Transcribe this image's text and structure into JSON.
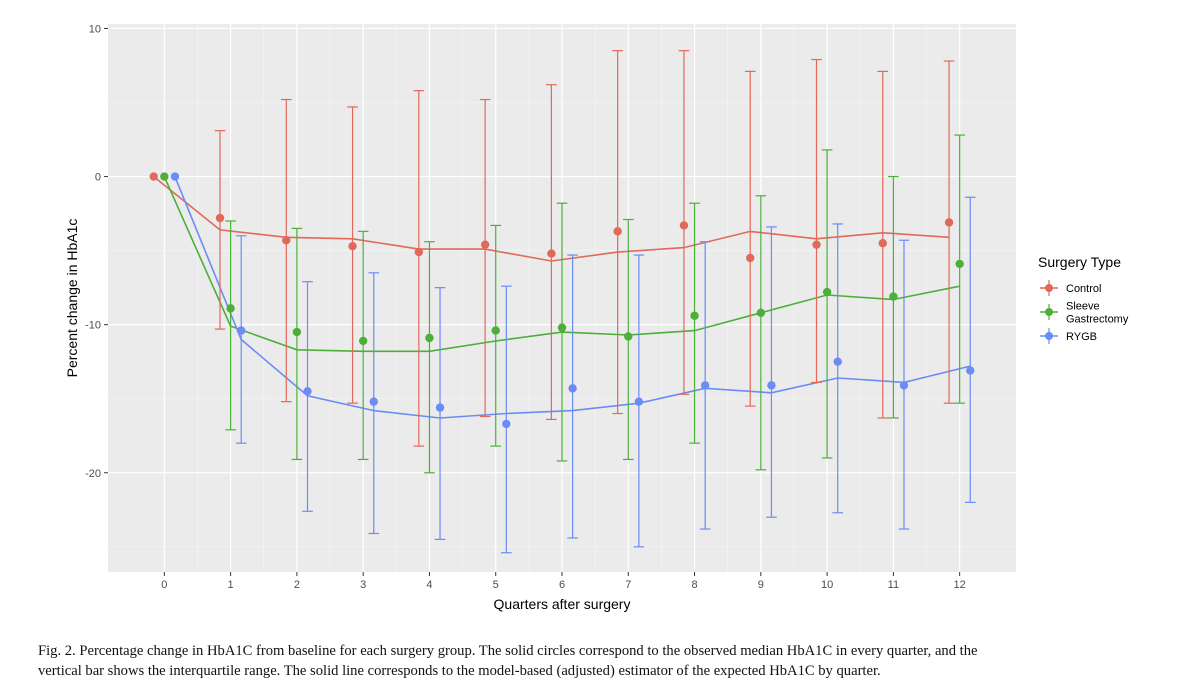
{
  "chart_data": {
    "type": "line",
    "ylabel": "Percent change in HbA1c",
    "xlabel": "Quarters after surgery",
    "x": [
      0,
      1,
      2,
      3,
      4,
      5,
      6,
      7,
      8,
      9,
      10,
      11,
      12
    ],
    "x_tick_labels": [
      "0",
      "1",
      "2",
      "3",
      "4",
      "5",
      "6",
      "7",
      "8",
      "9",
      "10",
      "11",
      "12"
    ],
    "y_ticks": [
      10,
      0,
      -10,
      -20
    ],
    "y_tick_labels": [
      "10",
      "0",
      "-10",
      "-20"
    ],
    "xlim": [
      -0.85,
      12.85
    ],
    "ylim": [
      -26.7,
      10.3
    ],
    "grid": true,
    "legend_title": "Surgery Type",
    "legend_position": "right",
    "series": [
      {
        "name": "Control",
        "name_lines": [
          "Control"
        ],
        "color": "#E0695A",
        "median": [
          0,
          -2.8,
          -4.3,
          -4.7,
          -5.1,
          -4.6,
          -5.2,
          -3.7,
          -3.3,
          -5.5,
          -4.6,
          -4.5,
          -3.1
        ],
        "q1": [
          0,
          -10.3,
          -15.2,
          -15.3,
          -18.2,
          -16.2,
          -16.4,
          -16,
          -14.7,
          -15.5,
          -13.9,
          -16.3,
          -15.3
        ],
        "q3": [
          0,
          3.1,
          5.2,
          4.7,
          5.8,
          5.2,
          6.2,
          8.5,
          8.5,
          7.1,
          7.9,
          7.1,
          7.8
        ],
        "model": [
          0,
          -3.6,
          -4.1,
          -4.2,
          -4.9,
          -4.9,
          -5.7,
          -5.1,
          -4.8,
          -3.7,
          -4.2,
          -3.8,
          -4.1
        ]
      },
      {
        "name": "Sleeve Gastrectomy",
        "name_lines": [
          "Sleeve",
          "Gastrectomy"
        ],
        "color": "#4CAF3A",
        "median": [
          0,
          -8.9,
          -10.5,
          -11.1,
          -10.9,
          -10.4,
          -10.2,
          -10.8,
          -9.4,
          -9.2,
          -7.8,
          -8.1,
          -5.9
        ],
        "q1": [
          0,
          -17.1,
          -19.1,
          -19.1,
          -20,
          -18.2,
          -19.2,
          -19.1,
          -18,
          -19.8,
          -19,
          -16.3,
          -15.3
        ],
        "q3": [
          0,
          -3,
          -3.5,
          -3.7,
          -4.4,
          -3.3,
          -1.8,
          -2.9,
          -1.8,
          -1.3,
          1.8,
          0,
          2.8
        ],
        "model": [
          0,
          -10.1,
          -11.7,
          -11.8,
          -11.8,
          -11.1,
          -10.5,
          -10.7,
          -10.4,
          -9.2,
          -8,
          -8.3,
          -7.4
        ]
      },
      {
        "name": "RYGB",
        "name_lines": [
          "RYGB"
        ],
        "color": "#6A8CF5",
        "median": [
          0,
          -10.4,
          -14.5,
          -15.2,
          -15.6,
          -16.7,
          -14.3,
          -15.2,
          -14.1,
          -14.1,
          -12.5,
          -14.1,
          -13.1
        ],
        "q1": [
          0,
          -18,
          -22.6,
          -24.1,
          -24.5,
          -25.4,
          -24.4,
          -25,
          -23.8,
          -23,
          -22.7,
          -23.8,
          -22
        ],
        "q3": [
          0,
          -4,
          -7.1,
          -6.5,
          -7.5,
          -7.4,
          -5.3,
          -5.3,
          -4.4,
          -3.4,
          -3.2,
          -4.3,
          -1.4
        ],
        "model": [
          0,
          -11,
          -14.8,
          -15.8,
          -16.3,
          -16,
          -15.8,
          -15.3,
          -14.3,
          -14.6,
          -13.6,
          -13.9,
          -12.8
        ]
      }
    ]
  },
  "caption": {
    "line1": "Fig. 2.  Percentage change in HbA1C from baseline for each surgery group. The solid circles correspond to the observed median HbA1C in every quarter, and the",
    "line2": "vertical bar shows the interquartile range. The solid line corresponds to the model-based (adjusted) estimator of the expected HbA1C by quarter."
  }
}
